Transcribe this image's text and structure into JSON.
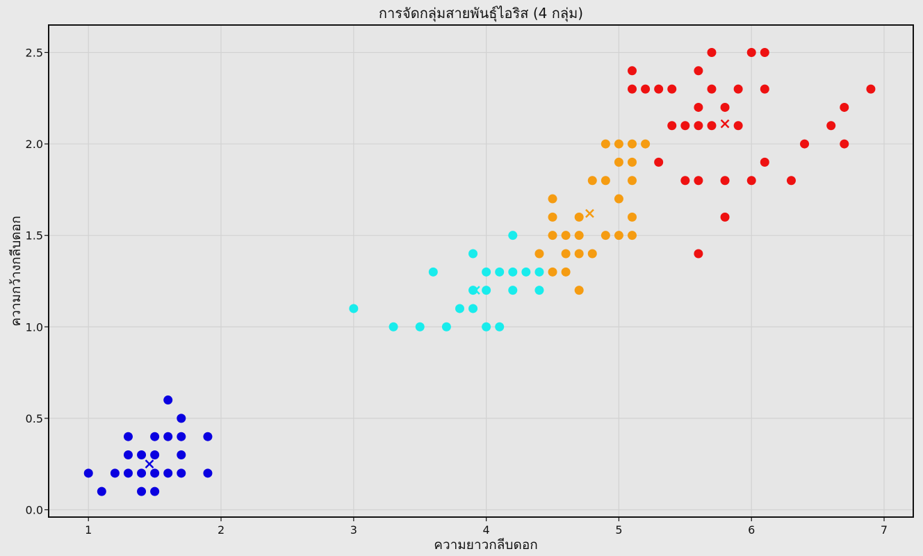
{
  "chart_data": {
    "type": "scatter",
    "title": "การจัดกลุ่มสายพันธุ์ไอริส (4 กลุ่ม)",
    "xlabel": "ความยาวกลีบดอก",
    "ylabel": "ความกว้างกลีบดอก",
    "xlim": [
      0.7,
      7.22
    ],
    "ylim": [
      -0.04,
      2.65
    ],
    "xticks": [
      1,
      2,
      3,
      4,
      5,
      6,
      7
    ],
    "xtick_labels": [
      "1",
      "2",
      "3",
      "4",
      "5",
      "6",
      "7"
    ],
    "yticks": [
      0.0,
      0.5,
      1.0,
      1.5,
      2.0,
      2.5
    ],
    "ytick_labels": [
      "0.0",
      "0.5",
      "1.0",
      "1.5",
      "2.0",
      "2.5"
    ],
    "grid": true,
    "series": [
      {
        "color": "#0a00e0",
        "centroid": [
          1.46,
          0.25
        ],
        "points": [
          [
            1.0,
            0.2
          ],
          [
            1.1,
            0.1
          ],
          [
            1.2,
            0.2
          ],
          [
            1.3,
            0.4
          ],
          [
            1.3,
            0.3
          ],
          [
            1.3,
            0.2
          ],
          [
            1.4,
            0.3
          ],
          [
            1.4,
            0.2
          ],
          [
            1.4,
            0.1
          ],
          [
            1.5,
            0.4
          ],
          [
            1.5,
            0.3
          ],
          [
            1.5,
            0.2
          ],
          [
            1.5,
            0.1
          ],
          [
            1.6,
            0.6
          ],
          [
            1.6,
            0.4
          ],
          [
            1.6,
            0.2
          ],
          [
            1.7,
            0.5
          ],
          [
            1.7,
            0.4
          ],
          [
            1.7,
            0.3
          ],
          [
            1.7,
            0.2
          ],
          [
            1.9,
            0.4
          ],
          [
            1.9,
            0.2
          ]
        ]
      },
      {
        "color": "#19ecec",
        "centroid": [
          3.92,
          1.2
        ],
        "points": [
          [
            3.0,
            1.1
          ],
          [
            3.3,
            1.0
          ],
          [
            3.5,
            1.0
          ],
          [
            3.6,
            1.3
          ],
          [
            3.7,
            1.0
          ],
          [
            3.8,
            1.1
          ],
          [
            3.9,
            1.4
          ],
          [
            3.9,
            1.2
          ],
          [
            3.9,
            1.1
          ],
          [
            4.0,
            1.3
          ],
          [
            4.0,
            1.2
          ],
          [
            4.0,
            1.0
          ],
          [
            4.1,
            1.3
          ],
          [
            4.1,
            1.0
          ],
          [
            4.2,
            1.5
          ],
          [
            4.2,
            1.3
          ],
          [
            4.2,
            1.2
          ],
          [
            4.3,
            1.3
          ],
          [
            4.4,
            1.3
          ],
          [
            4.4,
            1.2
          ]
        ]
      },
      {
        "color": "#f59c12",
        "centroid": [
          4.78,
          1.62
        ],
        "points": [
          [
            4.4,
            1.4
          ],
          [
            4.5,
            1.7
          ],
          [
            4.5,
            1.6
          ],
          [
            4.5,
            1.5
          ],
          [
            4.5,
            1.3
          ],
          [
            4.6,
            1.5
          ],
          [
            4.6,
            1.4
          ],
          [
            4.6,
            1.3
          ],
          [
            4.7,
            1.6
          ],
          [
            4.7,
            1.5
          ],
          [
            4.7,
            1.4
          ],
          [
            4.7,
            1.2
          ],
          [
            4.8,
            1.8
          ],
          [
            4.8,
            1.4
          ],
          [
            4.9,
            2.0
          ],
          [
            4.9,
            1.8
          ],
          [
            4.9,
            1.5
          ],
          [
            5.0,
            2.0
          ],
          [
            5.0,
            1.9
          ],
          [
            5.0,
            1.7
          ],
          [
            5.0,
            1.5
          ],
          [
            5.1,
            2.0
          ],
          [
            5.1,
            1.9
          ],
          [
            5.1,
            1.8
          ],
          [
            5.1,
            1.6
          ],
          [
            5.1,
            1.5
          ],
          [
            5.2,
            2.0
          ]
        ]
      },
      {
        "color": "#ee1111",
        "centroid": [
          5.8,
          2.11
        ],
        "points": [
          [
            5.1,
            2.4
          ],
          [
            5.1,
            2.3
          ],
          [
            5.2,
            2.3
          ],
          [
            5.3,
            2.3
          ],
          [
            5.3,
            1.9
          ],
          [
            5.4,
            2.3
          ],
          [
            5.4,
            2.1
          ],
          [
            5.5,
            2.1
          ],
          [
            5.5,
            1.8
          ],
          [
            5.6,
            2.4
          ],
          [
            5.6,
            2.2
          ],
          [
            5.6,
            2.1
          ],
          [
            5.6,
            1.8
          ],
          [
            5.6,
            1.4
          ],
          [
            5.7,
            2.5
          ],
          [
            5.7,
            2.3
          ],
          [
            5.7,
            2.1
          ],
          [
            5.8,
            2.2
          ],
          [
            5.8,
            1.8
          ],
          [
            5.8,
            1.6
          ],
          [
            5.9,
            2.3
          ],
          [
            5.9,
            2.1
          ],
          [
            6.0,
            2.5
          ],
          [
            6.0,
            1.8
          ],
          [
            6.1,
            2.5
          ],
          [
            6.1,
            2.3
          ],
          [
            6.1,
            1.9
          ],
          [
            6.3,
            1.8
          ],
          [
            6.4,
            2.0
          ],
          [
            6.6,
            2.1
          ],
          [
            6.7,
            2.2
          ],
          [
            6.7,
            2.0
          ],
          [
            6.9,
            2.3
          ]
        ]
      }
    ]
  }
}
